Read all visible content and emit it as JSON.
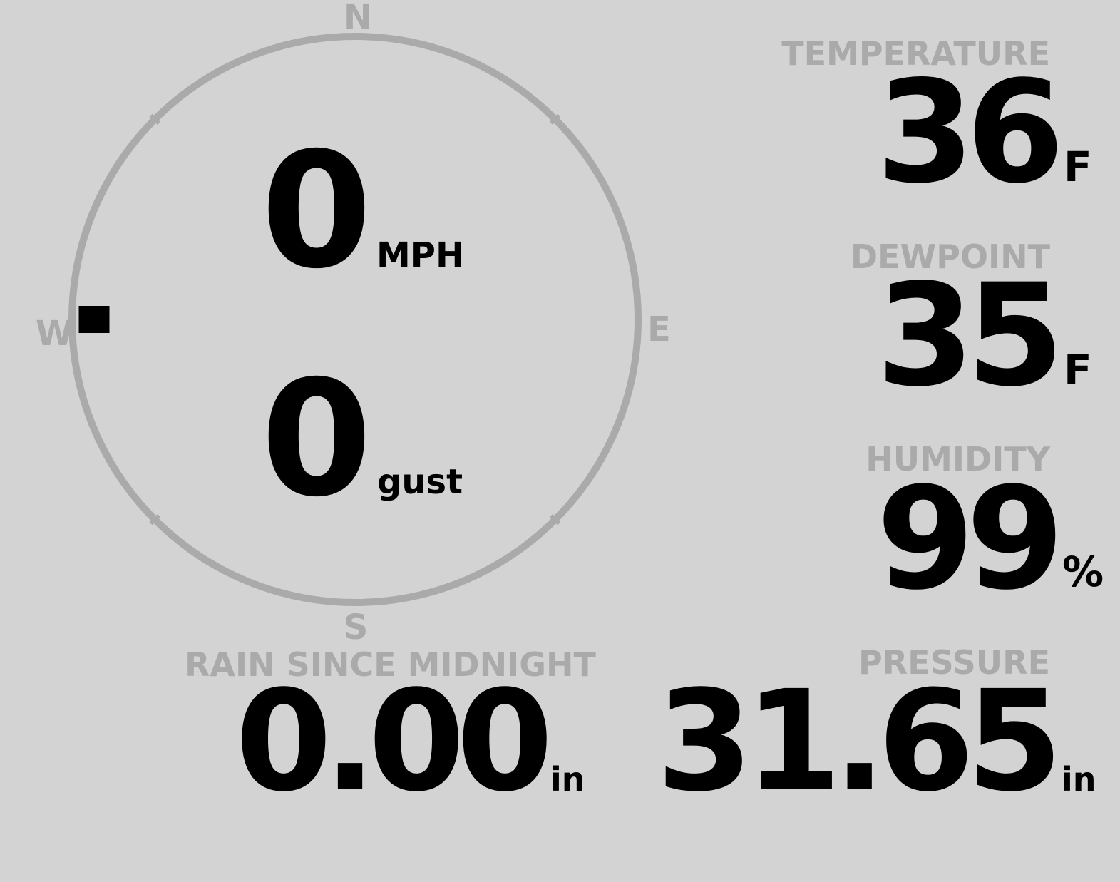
{
  "colors": {
    "background": "#d3d3d3",
    "label": "#aaaaaa",
    "value": "#000000",
    "dial": "#aaaaaa",
    "pointer": "#000000"
  },
  "wind": {
    "compass": {
      "n": "N",
      "e": "E",
      "s": "S",
      "w": "W"
    },
    "direction_deg": 270,
    "speed": "0",
    "speed_unit": "MPH",
    "gust": "0",
    "gust_unit": "gust"
  },
  "temperature": {
    "label": "TEMPERATURE",
    "value": "36",
    "unit": "F"
  },
  "dewpoint": {
    "label": "DEWPOINT",
    "value": "35",
    "unit": "F"
  },
  "humidity": {
    "label": "HUMIDITY",
    "value": "99",
    "unit": "%"
  },
  "rain": {
    "label": "RAIN SINCE MIDNIGHT",
    "value": "0.00",
    "unit": "in"
  },
  "pressure": {
    "label": "PRESSURE",
    "value": "31.65",
    "unit": "in"
  }
}
